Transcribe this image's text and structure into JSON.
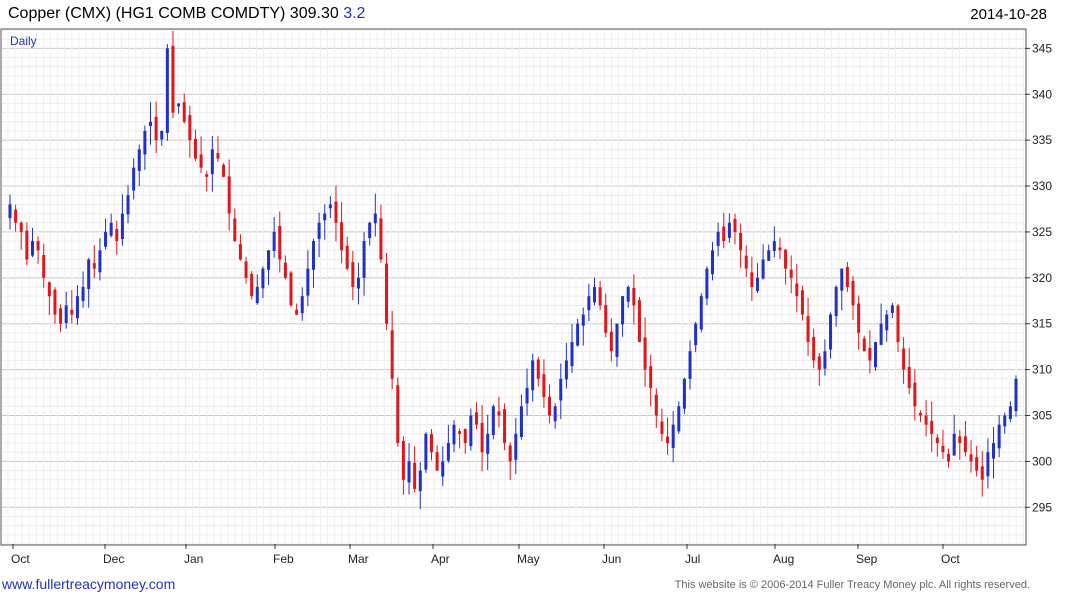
{
  "header": {
    "title": "Copper (CMX) (HG1 COMB COMDTY) 309.30",
    "change": "3.2",
    "date": "2014-10-28",
    "period": "Daily"
  },
  "footer": {
    "website": "www.fullertreacymoney.com",
    "copyright": "This website is © 2006-2014 Fuller Treacy Money plc. All rights reserved."
  },
  "colors": {
    "up": "#1f31c8",
    "down": "#e0161b",
    "grid": "#d9d9d9",
    "axis": "#333333"
  },
  "chart_data": {
    "type": "ohlc",
    "title": "Copper (CMX) (HG1 COMB COMDTY) 309.30",
    "ylim": [
      291,
      347
    ],
    "y_ticks": [
      295,
      300,
      305,
      310,
      315,
      320,
      325,
      330,
      335,
      340,
      345
    ],
    "x_ticks": [
      "Oct",
      "Dec",
      "Jan",
      "Feb",
      "Mar",
      "Apr",
      "May",
      "Jun",
      "Jul",
      "Aug",
      "Sep",
      "Oct"
    ],
    "grid": true,
    "closes_approx": [
      328,
      326,
      325,
      322,
      324,
      323,
      320,
      318,
      316,
      315,
      317,
      316,
      318,
      319,
      322,
      321,
      323,
      325,
      326,
      324,
      327,
      329,
      332,
      334,
      336,
      337,
      335,
      336,
      345,
      338,
      339,
      337,
      335,
      333,
      332,
      331,
      334,
      333,
      331,
      327,
      324,
      322,
      320,
      318,
      319,
      321,
      323,
      325,
      322,
      320,
      317,
      316,
      318,
      321,
      324,
      326,
      327,
      328,
      326,
      323,
      321,
      319,
      320,
      324,
      326,
      327,
      322,
      315,
      309,
      302,
      298,
      300,
      297,
      299,
      303,
      301,
      299,
      300,
      302,
      304,
      303,
      302,
      305,
      304,
      301,
      303,
      306,
      305,
      302,
      300,
      303,
      306,
      308,
      311,
      309,
      307,
      305,
      306,
      309,
      311,
      313,
      315,
      316,
      318,
      319,
      317,
      314,
      312,
      315,
      318,
      319,
      317,
      313,
      310,
      308,
      305,
      303,
      302,
      304,
      306,
      309,
      312,
      315,
      318,
      321,
      323,
      325,
      324,
      326,
      325,
      323,
      321,
      319,
      320,
      322,
      323,
      324,
      323,
      321,
      320,
      318,
      316,
      313,
      311,
      310,
      312,
      316,
      319,
      321,
      319,
      317,
      314,
      312,
      311,
      313,
      315,
      316,
      317,
      313,
      310,
      308,
      306,
      305,
      304,
      303,
      302,
      301,
      300,
      303,
      302,
      301,
      300,
      299,
      298,
      301,
      302,
      304,
      305,
      306,
      309
    ]
  }
}
